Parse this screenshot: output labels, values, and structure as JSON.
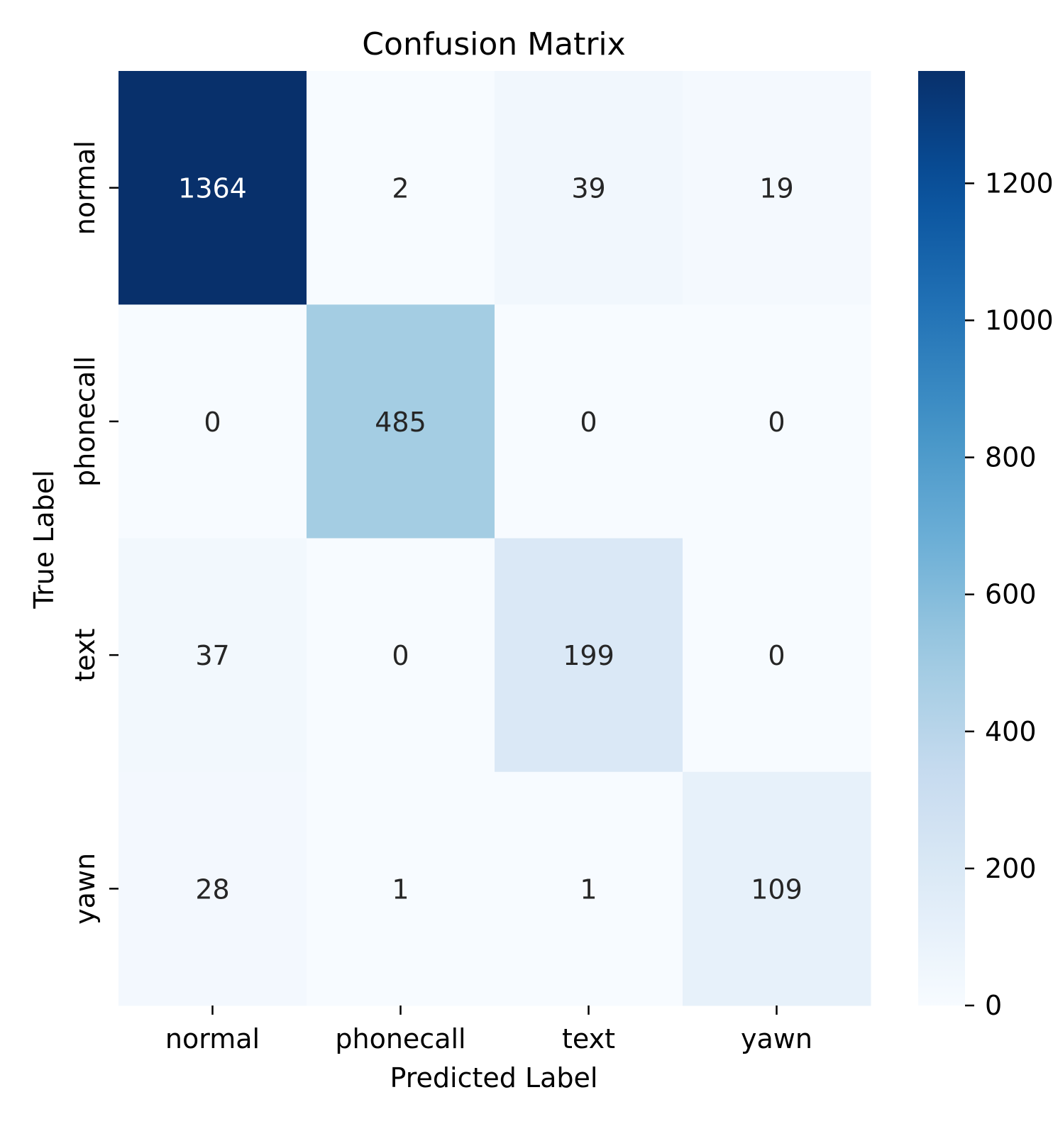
{
  "chart_data": {
    "type": "heatmap",
    "title": "Confusion Matrix",
    "xlabel": "Predicted Label",
    "ylabel": "True Label",
    "x_categories": [
      "normal",
      "phonecall",
      "text",
      "yawn"
    ],
    "y_categories": [
      "normal",
      "phonecall",
      "text",
      "yawn"
    ],
    "matrix": [
      [
        1364,
        2,
        39,
        19
      ],
      [
        0,
        485,
        0,
        0
      ],
      [
        37,
        0,
        199,
        0
      ],
      [
        28,
        1,
        1,
        109
      ]
    ],
    "colorscale": "Blues",
    "color_range": [
      0,
      1364
    ],
    "colorbar_ticks": [
      0,
      200,
      400,
      600,
      800,
      1000,
      1200
    ]
  }
}
